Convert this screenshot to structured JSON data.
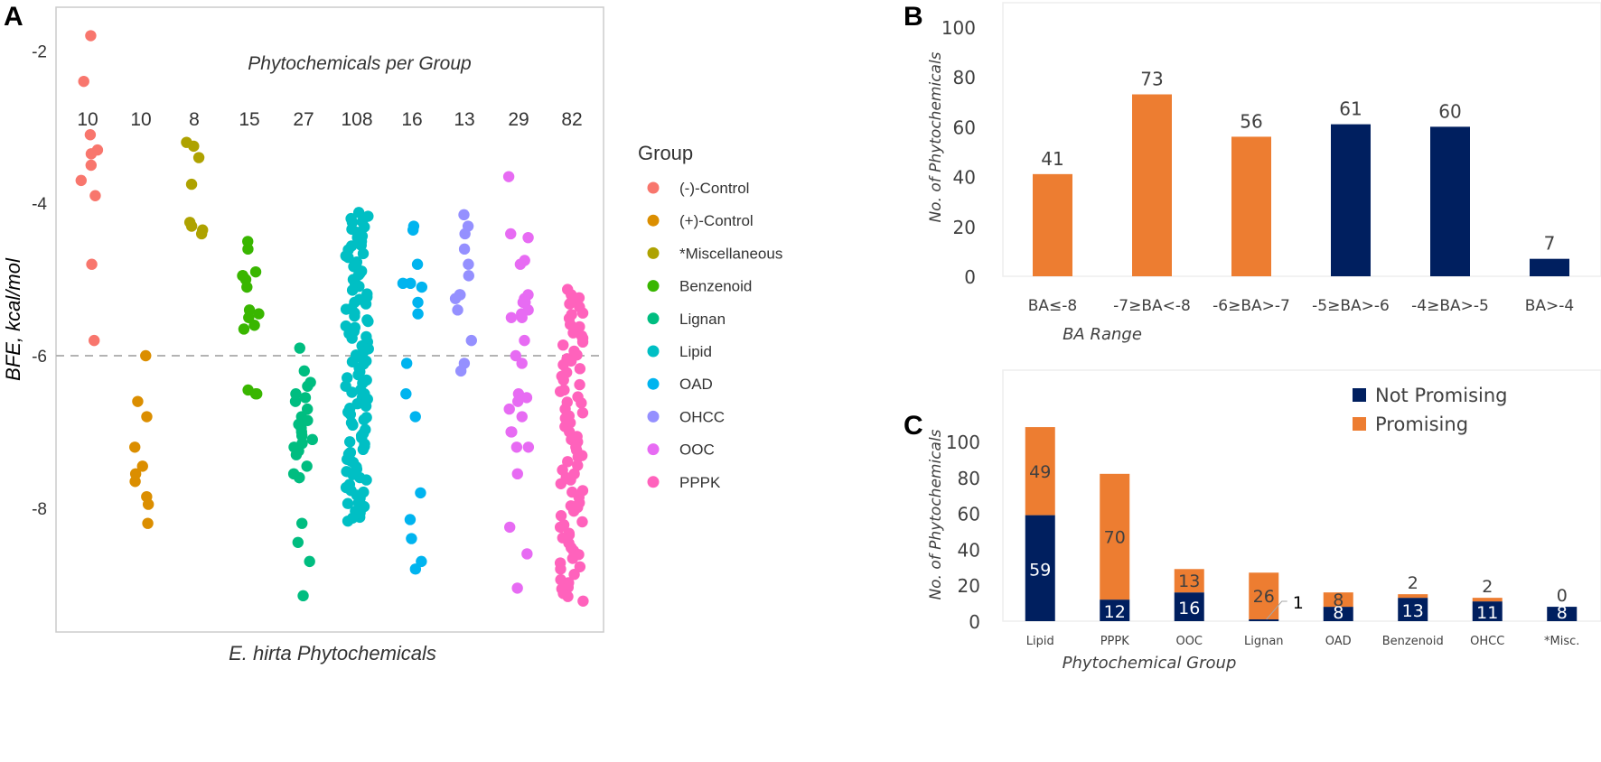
{
  "panels": {
    "A": {
      "letter": "A"
    },
    "B": {
      "letter": "B"
    },
    "C": {
      "letter": "C"
    }
  },
  "chart_data": [
    {
      "id": "A",
      "type": "scatter",
      "title": "Phytochemicals per Group",
      "xlabel": "E. hirta Phytochemicals",
      "ylabel": "BFE, kcal/mol",
      "ylim": [
        -9.4,
        -1.6
      ],
      "yticks": [
        -2,
        -4,
        -6,
        -8
      ],
      "ytick_labels": [
        "-2",
        "-4",
        "-6",
        "-8"
      ],
      "reference_line": {
        "y": -6,
        "style": "dashed",
        "color": "#b3b3b3"
      },
      "grid": false,
      "legend": {
        "title": "Group",
        "placement": "right"
      },
      "groups": [
        {
          "name": "(-)-Control",
          "count": 10,
          "color": "#F8766D",
          "values": [
            -1.8,
            -2.4,
            -3.1,
            -3.3,
            -3.35,
            -3.5,
            -3.7,
            -3.9,
            -4.8,
            -5.8
          ]
        },
        {
          "name": "(+)-Control",
          "count": 10,
          "color": "#DB8E00",
          "values": [
            -6.0,
            -6.6,
            -6.8,
            -7.2,
            -7.45,
            -7.55,
            -7.65,
            -7.85,
            -7.95,
            -8.2
          ]
        },
        {
          "name": "*Miscellaneous",
          "count": 8,
          "color": "#AEA200",
          "values": [
            -3.2,
            -3.25,
            -3.4,
            -3.75,
            -4.25,
            -4.3,
            -4.35,
            -4.4
          ]
        },
        {
          "name": "Benzenoid",
          "count": 15,
          "color": "#39B600",
          "values": [
            -4.5,
            -4.6,
            -4.9,
            -4.95,
            -4.95,
            -5.0,
            -5.1,
            -5.4,
            -5.45,
            -5.5,
            -5.6,
            -5.65,
            -6.45,
            -6.5,
            -6.5
          ]
        },
        {
          "name": "Lignan",
          "count": 27,
          "color": "#00BD80",
          "values": [
            -5.9,
            -6.2,
            -6.35,
            -6.4,
            -6.5,
            -6.55,
            -6.6,
            -6.7,
            -6.8,
            -6.85,
            -6.9,
            -6.95,
            -7.0,
            -7.05,
            -7.1,
            -7.15,
            -7.2,
            -7.25,
            -7.3,
            -7.45,
            -7.55,
            -7.6,
            -7.6,
            -8.2,
            -8.45,
            -8.7,
            -9.15
          ]
        },
        {
          "name": "Lipid",
          "count": 108,
          "color": "#00BFC4",
          "range": [
            -8.2,
            -4.1
          ],
          "values": []
        },
        {
          "name": "OAD",
          "count": 16,
          "color": "#00B4EF",
          "values": [
            -4.3,
            -4.35,
            -4.8,
            -5.05,
            -5.05,
            -5.1,
            -5.3,
            -5.45,
            -6.1,
            -6.5,
            -6.8,
            -7.8,
            -8.15,
            -8.4,
            -8.7,
            -8.8
          ]
        },
        {
          "name": "OHCC",
          "count": 13,
          "color": "#9590FF",
          "values": [
            -4.15,
            -4.3,
            -4.4,
            -4.6,
            -4.8,
            -4.95,
            -5.2,
            -5.2,
            -5.25,
            -5.4,
            -5.8,
            -6.1,
            -6.2
          ]
        },
        {
          "name": "OOC",
          "count": 29,
          "color": "#E76BF3",
          "values": [
            -3.65,
            -4.4,
            -4.45,
            -4.75,
            -4.8,
            -5.2,
            -5.25,
            -5.3,
            -5.3,
            -5.4,
            -5.45,
            -5.5,
            -5.5,
            -5.8,
            -6.0,
            -6.1,
            -6.5,
            -6.55,
            -6.6,
            -6.7,
            -6.8,
            -7.0,
            -7.0,
            -7.2,
            -7.2,
            -7.55,
            -8.25,
            -8.6,
            -9.05
          ]
        },
        {
          "name": "PPPK",
          "count": 82,
          "color": "#FF62BC",
          "range": [
            -9.25,
            -5.1
          ],
          "values": []
        }
      ]
    },
    {
      "id": "B",
      "type": "bar",
      "xlabel": "BA Range",
      "ylabel": "No. of Phytochemicals",
      "ylim": [
        0,
        100
      ],
      "yticks": [
        0,
        20,
        40,
        60,
        80,
        100
      ],
      "categories": [
        "BA≤-8",
        "-7≥BA<-8",
        "-6≥BA>-7",
        "-5≥BA>-6",
        "-4≥BA>-5",
        "BA>-4"
      ],
      "values": [
        41,
        73,
        56,
        61,
        60,
        7
      ],
      "bar_colors": [
        "#ED7D31",
        "#ED7D31",
        "#ED7D31",
        "#001F5F",
        "#001F5F",
        "#001F5F"
      ],
      "data_labels": [
        "41",
        "73",
        "56",
        "61",
        "60",
        "7"
      ],
      "grid": false
    },
    {
      "id": "C",
      "type": "bar",
      "stacked": true,
      "xlabel": "Phytochemical  Group",
      "ylabel": "No. of Phytochemicals",
      "ylim": [
        0,
        108
      ],
      "yticks": [
        0,
        20,
        40,
        60,
        80,
        100
      ],
      "categories": [
        "Lipid",
        "PPPK",
        "OOC",
        "Lignan",
        "OAD",
        "Benzenoid",
        "OHCC",
        "*Misc."
      ],
      "series": [
        {
          "name": "Not Promising",
          "color": "#001F5F",
          "values": [
            59,
            12,
            16,
            1,
            8,
            13,
            11,
            8
          ]
        },
        {
          "name": "Promising",
          "color": "#ED7D31",
          "values": [
            49,
            70,
            13,
            26,
            8,
            2,
            2,
            0
          ]
        }
      ],
      "legend": {
        "placement": "top-right",
        "entries": [
          "Not Promising",
          "Promising"
        ]
      },
      "grid": false
    }
  ]
}
